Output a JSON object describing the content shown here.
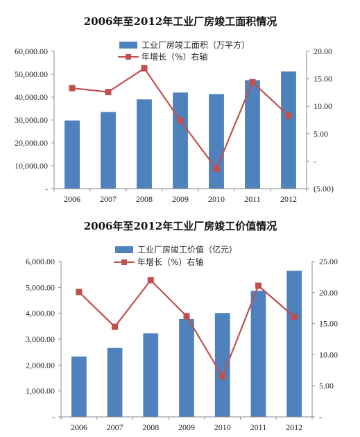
{
  "charts": [
    {
      "type": "bar",
      "title": "2006年至2012年工业厂房竣工面积情况",
      "categories": [
        "2006",
        "2007",
        "2008",
        "2009",
        "2010",
        "2011",
        "2012"
      ],
      "bar_series": {
        "name": "工业厂房竣工面积（万平方）",
        "color": "#4f81bd",
        "values": [
          29800,
          33500,
          39000,
          42000,
          41300,
          47400,
          51200
        ]
      },
      "line_series": {
        "name": "年增长（%）右轴",
        "color": "#c0504d",
        "values": [
          13.3,
          12.6,
          16.9,
          7.4,
          -1.4,
          14.4,
          8.3
        ]
      },
      "y_left": {
        "min": 0,
        "max": 60000,
        "step": 10000,
        "labels": [
          "-",
          "10,000.00",
          "20,000.00",
          "30,000.00",
          "40,000.00",
          "50,000.00",
          "60,000.00"
        ]
      },
      "y_right": {
        "min": -5,
        "max": 20,
        "step": 5,
        "labels": [
          "(5.00)",
          "-",
          "5.00",
          "10.00",
          "15.00",
          "20.00"
        ]
      }
    },
    {
      "type": "bar",
      "title": "2006年至2012年工业厂房竣工价值情况",
      "categories": [
        "2006",
        "2007",
        "2008",
        "2009",
        "2010",
        "2011",
        "2012"
      ],
      "bar_series": {
        "name": "工业厂房竣工价值（亿元）",
        "color": "#4f81bd",
        "values": [
          2330,
          2660,
          3230,
          3780,
          4010,
          4870,
          5640
        ]
      },
      "line_series": {
        "name": "年增长（%）右轴",
        "color": "#c0504d",
        "values": [
          20.1,
          14.5,
          22.0,
          16.2,
          6.5,
          21.1,
          16.1
        ]
      },
      "y_left": {
        "min": 0,
        "max": 6000,
        "step": 1000,
        "labels": [
          "-",
          "1,000.00",
          "2,000.00",
          "3,000.00",
          "4,000.00",
          "5,000.00",
          "6,000.00"
        ]
      },
      "y_right": {
        "min": 0,
        "max": 25,
        "step": 5,
        "labels": [
          "-",
          "5.00",
          "10.00",
          "15.00",
          "20.00",
          "25.00"
        ]
      }
    }
  ]
}
